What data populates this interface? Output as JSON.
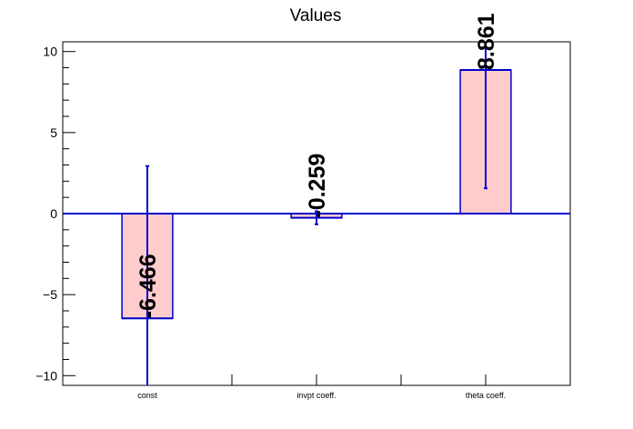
{
  "chart_data": {
    "type": "bar",
    "title": "Values",
    "categories": [
      "const",
      "invpt coeff.",
      "theta coeff."
    ],
    "values": [
      -6.466,
      -0.259,
      8.861
    ],
    "value_labels": [
      "-6.466",
      "-0.259",
      "8.861"
    ],
    "errors": [
      9.4,
      0.4,
      7.3
    ],
    "xlabel": "",
    "ylabel": "",
    "ylim": [
      -10.6,
      10.6
    ],
    "yticks": [
      -10,
      -5,
      0,
      5,
      10
    ],
    "ytick_labels": [
      "−10",
      "−5",
      "0",
      "5",
      "10"
    ],
    "grid": false,
    "legend": "none",
    "colors": {
      "bar_fill": "#ffcccc",
      "bar_edge": "#0000cc",
      "zero_line": "#0000cc",
      "error_bar": "#0000cc",
      "axis": "#000000"
    }
  }
}
